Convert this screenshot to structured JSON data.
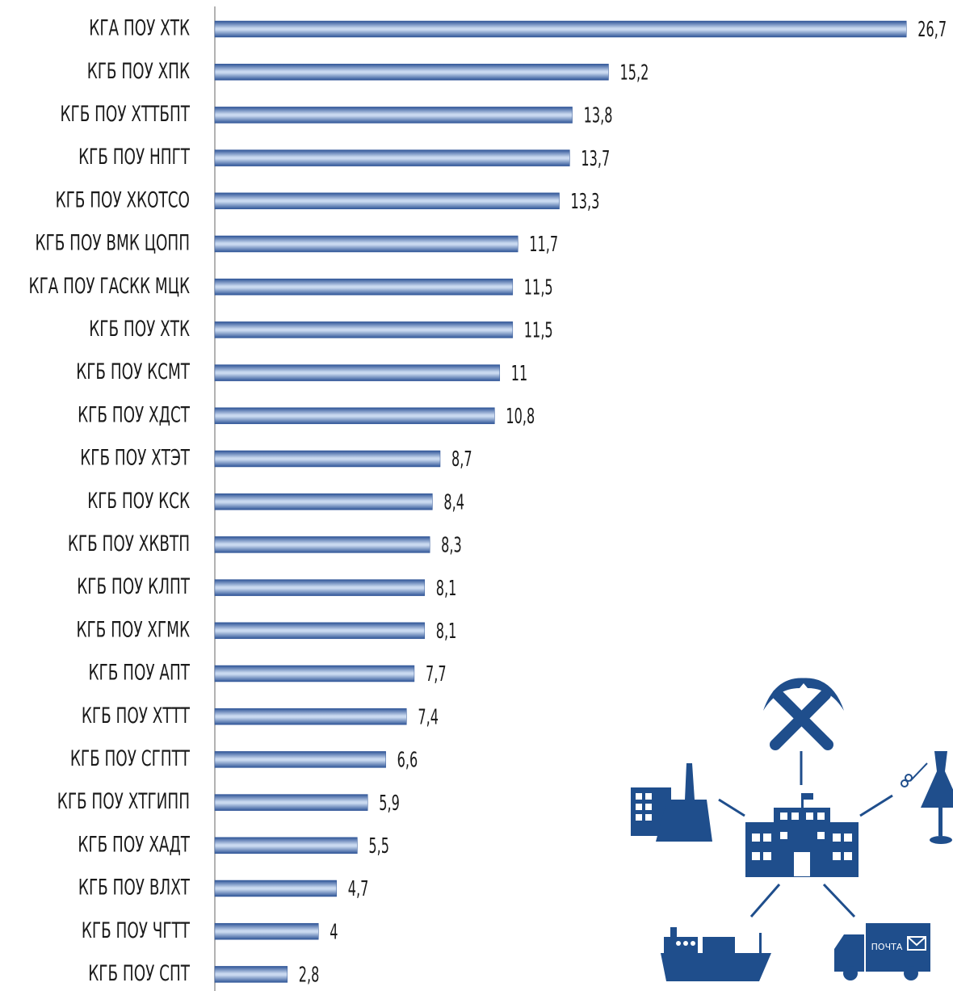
{
  "chart_data": {
    "type": "bar",
    "orientation": "horizontal",
    "categories": [
      "КГА ПОУ ХТК",
      "КГБ ПОУ ХПК",
      "КГБ ПОУ ХТТБПТ",
      "КГБ ПОУ НПГТ",
      "КГБ ПОУ ХКОТСО",
      "КГБ ПОУ ВМК  ЦОПП",
      "КГА ПОУ ГАСКК МЦК",
      "КГБ ПОУ ХТК",
      "КГБ ПОУ КСМТ",
      "КГБ ПОУ ХДСТ",
      "КГБ ПОУ ХТЭТ",
      "КГБ ПОУ КСК",
      "КГБ ПОУ ХКВТП",
      "КГБ ПОУ КЛПТ",
      "КГБ ПОУ ХГМК",
      "КГБ ПОУ АПТ",
      "КГБ ПОУ ХТТТ",
      "КГБ ПОУ СГПТТ",
      "КГБ ПОУ ХТГИПП",
      "КГБ ПОУ ХАДТ",
      "КГБ ПОУ ВЛХТ",
      "КГБ ПОУ ЧГТТ",
      "КГБ ПОУ СПТ"
    ],
    "values": [
      26.7,
      15.2,
      13.8,
      13.7,
      13.3,
      11.7,
      11.5,
      11.5,
      11,
      10.8,
      8.7,
      8.4,
      8.3,
      8.1,
      8.1,
      7.7,
      7.4,
      6.6,
      5.9,
      5.5,
      4.7,
      4,
      2.8
    ],
    "value_labels": [
      "26,7",
      "15,2",
      "13,8",
      "13,7",
      "13,3",
      "11,7",
      "11,5",
      "11,5",
      "11",
      "10,8",
      "8,7",
      "8,4",
      "8,3",
      "8,1",
      "8,1",
      "7,7",
      "7,4",
      "6,6",
      "5,9",
      "5,5",
      "4,7",
      "4",
      "2,8"
    ],
    "color": "#2f5597",
    "xlim": [
      0,
      28.5
    ],
    "annotations": [
      "ПОЧТА"
    ]
  }
}
